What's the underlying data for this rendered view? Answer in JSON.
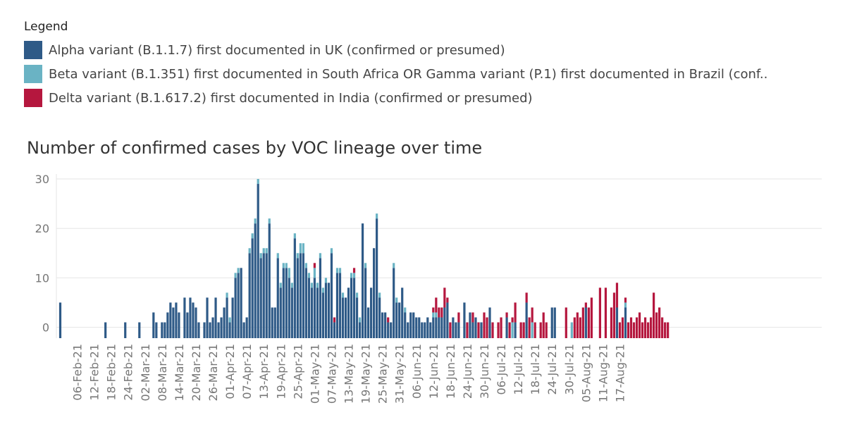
{
  "legend": {
    "title": "Legend",
    "items": [
      {
        "label": "Alpha variant (B.1.1.7) first documented in UK (confirmed or presumed)",
        "color": "#2e5a87"
      },
      {
        "label": "Beta variant (B.1.351) first documented in South Africa OR Gamma variant (P.1) first documented in Brazil (conf..",
        "color": "#6ab3c4"
      },
      {
        "label": "Delta variant (B.1.617.2) first documented in India (confirmed or presumed)",
        "color": "#b5173e"
      }
    ]
  },
  "chart_data": {
    "type": "bar",
    "stacked": true,
    "title": "Number of confirmed cases by VOC lineage over time",
    "xlabel": "",
    "ylabel": "",
    "ylim": [
      0,
      31
    ],
    "yticks": [
      0,
      10,
      20,
      30
    ],
    "start_date": "2021-01-31",
    "xtick_labels": [
      "06-Feb-21",
      "12-Feb-21",
      "18-Feb-21",
      "24-Feb-21",
      "02-Mar-21",
      "08-Mar-21",
      "14-Mar-21",
      "20-Mar-21",
      "26-Mar-21",
      "01-Apr-21",
      "07-Apr-21",
      "13-Apr-21",
      "19-Apr-21",
      "25-Apr-21",
      "01-May-21",
      "07-May-21",
      "13-May-21",
      "19-May-21",
      "25-May-21",
      "31-May-21",
      "06-Jun-21",
      "12-Jun-21",
      "18-Jun-21",
      "24-Jun-21",
      "30-Jun-21",
      "06-Jul-21",
      "12-Jul-21",
      "18-Jul-21",
      "24-Jul-21",
      "30-Jul-21",
      "05-Aug-21",
      "11-Aug-21",
      "17-Aug-21"
    ],
    "xtick_day_index": [
      6,
      12,
      18,
      24,
      30,
      36,
      42,
      48,
      54,
      60,
      66,
      72,
      78,
      84,
      90,
      96,
      102,
      108,
      114,
      120,
      126,
      132,
      138,
      144,
      150,
      156,
      162,
      168,
      174,
      180,
      186,
      192,
      198
    ],
    "series": [
      {
        "name": "Alpha",
        "color": "#2e5a87",
        "values": [
          5,
          0,
          0,
          0,
          0,
          0,
          0,
          0,
          0,
          0,
          0,
          0,
          0,
          0,
          0,
          0,
          1,
          0,
          0,
          0,
          0,
          0,
          0,
          1,
          0,
          0,
          0,
          0,
          1,
          0,
          0,
          0,
          0,
          3,
          1,
          0,
          1,
          1,
          3,
          5,
          4,
          5,
          3,
          0,
          6,
          3,
          6,
          5,
          4,
          1,
          0,
          1,
          6,
          1,
          2,
          6,
          1,
          2,
          4,
          6,
          1,
          6,
          10,
          11,
          12,
          1,
          2,
          15,
          18,
          21,
          29,
          14,
          15,
          15,
          21,
          4,
          4,
          14,
          8,
          12,
          12,
          10,
          8,
          18,
          14,
          15,
          15,
          12,
          10,
          8,
          10,
          8,
          14,
          7,
          9,
          9,
          15,
          1,
          11,
          11,
          6,
          6,
          8,
          10,
          10,
          6,
          1,
          21,
          12,
          4,
          8,
          16,
          22,
          6,
          3,
          3,
          1,
          1,
          12,
          5,
          5,
          8,
          3,
          1,
          3,
          3,
          2,
          2,
          1,
          1,
          2,
          1,
          2,
          2,
          2,
          2,
          4,
          5,
          0,
          2,
          1,
          1,
          0,
          5,
          0,
          3,
          1,
          2,
          0,
          1,
          0,
          0,
          4,
          0,
          0,
          0,
          0,
          0,
          2,
          0,
          0,
          1,
          0,
          0,
          0,
          5,
          0,
          0,
          0,
          0,
          0,
          0,
          0,
          0,
          4,
          4,
          0,
          0,
          0,
          0,
          0,
          0,
          0,
          0,
          0,
          0,
          4,
          0,
          0,
          0,
          0,
          0,
          0,
          0,
          0,
          0,
          0,
          4,
          0,
          0,
          4,
          0,
          0,
          0,
          0,
          0,
          0,
          0,
          0,
          0,
          0,
          0,
          0,
          0,
          0,
          0,
          0,
          0
        ],
        "values_note": "estimated"
      },
      {
        "name": "Beta/Gamma",
        "color": "#6ab3c4",
        "values": [
          0,
          0,
          0,
          0,
          0,
          0,
          0,
          0,
          0,
          0,
          0,
          0,
          0,
          0,
          0,
          0,
          0,
          0,
          0,
          0,
          0,
          0,
          0,
          0,
          0,
          0,
          0,
          0,
          0,
          0,
          0,
          0,
          0,
          0,
          0,
          0,
          0,
          0,
          0,
          0,
          0,
          0,
          0,
          0,
          0,
          0,
          0,
          0,
          0,
          0,
          0,
          0,
          0,
          0,
          0,
          0,
          0,
          0,
          0,
          1,
          1,
          0,
          1,
          1,
          0,
          0,
          0,
          1,
          1,
          1,
          1,
          1,
          1,
          1,
          1,
          0,
          0,
          1,
          1,
          1,
          1,
          2,
          1,
          1,
          1,
          2,
          2,
          1,
          1,
          1,
          2,
          1,
          1,
          1,
          1,
          0,
          1,
          0,
          1,
          1,
          1,
          0,
          0,
          1,
          1,
          1,
          1,
          0,
          1,
          0,
          0,
          0,
          1,
          1,
          0,
          0,
          0,
          0,
          1,
          1,
          0,
          0,
          1,
          0,
          0,
          0,
          0,
          0,
          0,
          0,
          0,
          0,
          1,
          1,
          0,
          0,
          0,
          0,
          0,
          0,
          0,
          0,
          0,
          0,
          0,
          0,
          0,
          0,
          0,
          0,
          0,
          0,
          0,
          0,
          0,
          0,
          0,
          0,
          0,
          0,
          1,
          0,
          0,
          0,
          0,
          0,
          0,
          1,
          0,
          0,
          0,
          0,
          0,
          0,
          0,
          0,
          0,
          0,
          0,
          0,
          0,
          1,
          0,
          0,
          0,
          0,
          0,
          0,
          0,
          0,
          0,
          0,
          0,
          0,
          0,
          0,
          0,
          0,
          0,
          0,
          1,
          0,
          0,
          0,
          0,
          0,
          0,
          0,
          0,
          0,
          0,
          0,
          0,
          0,
          0,
          0,
          0,
          0,
          0,
          0,
          0,
          0,
          0
        ],
        "values_note": "estimated"
      },
      {
        "name": "Delta",
        "color": "#b5173e",
        "values": [
          0,
          0,
          0,
          0,
          0,
          0,
          0,
          0,
          0,
          0,
          0,
          0,
          0,
          0,
          0,
          0,
          0,
          0,
          0,
          0,
          0,
          0,
          0,
          0,
          0,
          0,
          0,
          0,
          0,
          0,
          0,
          0,
          0,
          0,
          0,
          0,
          0,
          0,
          0,
          0,
          0,
          0,
          0,
          0,
          0,
          0,
          0,
          0,
          0,
          0,
          0,
          0,
          0,
          0,
          0,
          0,
          0,
          0,
          0,
          0,
          0,
          0,
          0,
          0,
          0,
          0,
          0,
          0,
          0,
          0,
          0,
          0,
          0,
          0,
          0,
          0,
          0,
          0,
          0,
          0,
          0,
          0,
          0,
          0,
          0,
          0,
          0,
          0,
          0,
          0,
          1,
          0,
          0,
          0,
          0,
          0,
          0,
          1,
          0,
          0,
          0,
          0,
          0,
          0,
          1,
          0,
          0,
          0,
          0,
          0,
          0,
          0,
          0,
          0,
          0,
          0,
          1,
          0,
          0,
          0,
          0,
          0,
          0,
          0,
          0,
          0,
          0,
          0,
          0,
          0,
          0,
          0,
          1,
          3,
          2,
          2,
          4,
          1,
          1,
          0,
          0,
          2,
          0,
          0,
          1,
          0,
          2,
          0,
          1,
          0,
          3,
          2,
          0,
          1,
          0,
          1,
          2,
          0,
          1,
          1,
          1,
          4,
          0,
          1,
          1,
          2,
          2,
          3,
          1,
          0,
          1,
          3,
          1,
          0,
          0,
          0,
          0,
          0,
          0,
          4,
          0,
          0,
          2,
          3,
          2,
          4,
          1,
          4,
          6,
          0,
          0,
          8,
          0,
          8,
          0,
          4,
          7,
          5,
          1,
          2,
          1,
          1,
          2,
          1,
          2,
          3,
          1,
          2,
          1,
          2,
          7,
          3,
          4,
          2,
          1,
          1
        ]
      }
    ]
  }
}
